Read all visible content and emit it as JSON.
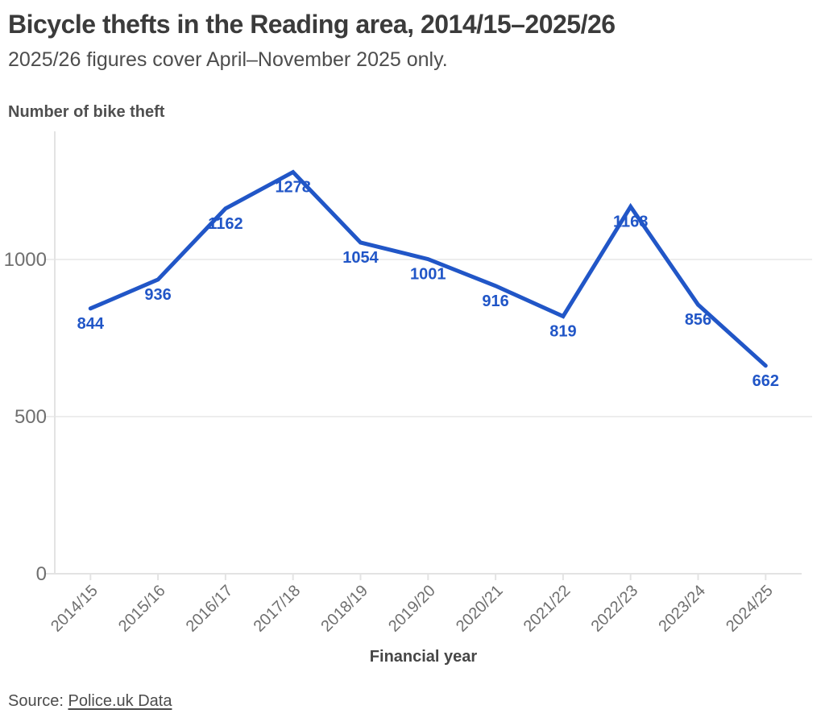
{
  "header": {
    "title": "Bicycle thefts in the Reading area, 2014/15–2025/26",
    "subtitle": "2025/26 figures cover April–November 2025 only."
  },
  "footer": {
    "source_prefix": "Source: ",
    "source_link": "Police.uk Data"
  },
  "chart_data": {
    "type": "line",
    "title": "Bicycle thefts in the Reading area, 2014/15–2025/26",
    "subtitle": "2025/26 figures cover April–November 2025 only.",
    "ylabel_heading": "Number of bike theft",
    "xlabel": "Financial year",
    "categories": [
      "2014/15",
      "2015/16",
      "2016/17",
      "2017/18",
      "2018/19",
      "2019/20",
      "2020/21",
      "2021/22",
      "2022/23",
      "2023/24",
      "2024/25"
    ],
    "values": [
      844,
      936,
      1162,
      1278,
      1054,
      1001,
      916,
      819,
      1168,
      856,
      662
    ],
    "yticks": [
      0,
      500,
      1000
    ],
    "ylim": [
      0,
      1408
    ],
    "grid": true,
    "legend": false,
    "colors": {
      "line": "#2156c7",
      "data_label": "#2156c7",
      "axis": "#e3e3e3",
      "grid": "#ededed",
      "tick_label": "#6f6f6f",
      "axis_title": "#464646"
    }
  }
}
